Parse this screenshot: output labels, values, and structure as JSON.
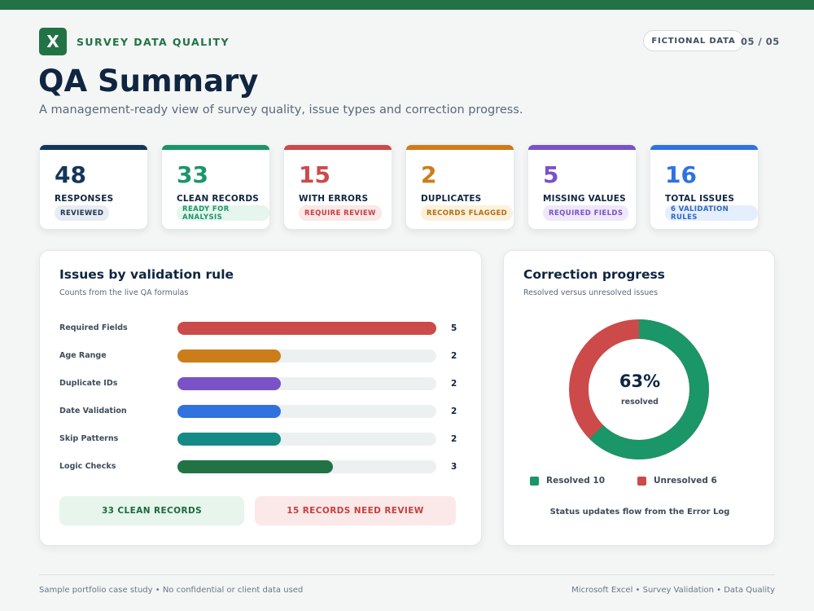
{
  "header": {
    "logo_letter": "X",
    "brand": "SURVEY DATA QUALITY",
    "badge": "FICTIONAL DATA",
    "page": "05 / 05",
    "title": "QA Summary",
    "subtitle": "A management-ready view of survey quality, issue types and correction progress."
  },
  "colors": {
    "brand_green": "#217346",
    "navy": "#13375a",
    "green": "#1a9668",
    "red": "#cc4a4a",
    "amber": "#cc7d1a",
    "purple": "#7a52c7",
    "blue": "#2f72e0",
    "teal": "#168a86"
  },
  "kpis": [
    {
      "value": "48",
      "label": "RESPONSES",
      "tag": "REVIEWED",
      "color": "#13375a",
      "tag_bg": "#e7edf2",
      "tag_color": "#1f3652"
    },
    {
      "value": "33",
      "label": "CLEAN RECORDS",
      "tag": "READY FOR ANALYSIS",
      "color": "#1a9668",
      "tag_bg": "#e6f5ee",
      "tag_color": "#1a9668"
    },
    {
      "value": "15",
      "label": "WITH ERRORS",
      "tag": "REQUIRE REVIEW",
      "color": "#cc4a4a",
      "tag_bg": "#fbe8e8",
      "tag_color": "#c44141"
    },
    {
      "value": "2",
      "label": "DUPLICATES",
      "tag": "RECORDS FLAGGED",
      "color": "#cc7d1a",
      "tag_bg": "#fcf1dc",
      "tag_color": "#b56c10"
    },
    {
      "value": "5",
      "label": "MISSING VALUES",
      "tag": "REQUIRED FIELDS",
      "color": "#7a52c7",
      "tag_bg": "#efe8fa",
      "tag_color": "#7a52c7"
    },
    {
      "value": "16",
      "label": "TOTAL ISSUES",
      "tag": "6 VALIDATION RULES",
      "color": "#2f72e0",
      "tag_bg": "#e5eefc",
      "tag_color": "#2f66c8"
    }
  ],
  "issues_panel": {
    "title": "Issues by validation rule",
    "subtitle": "Counts from the live QA formulas",
    "max": 5,
    "rules": [
      {
        "name": "Required Fields",
        "value": 5,
        "color": "#cc4a4a"
      },
      {
        "name": "Age Range",
        "value": 2,
        "color": "#cc7d1a"
      },
      {
        "name": "Duplicate IDs",
        "value": 2,
        "color": "#7a52c7"
      },
      {
        "name": "Date Validation",
        "value": 2,
        "color": "#2f72e0"
      },
      {
        "name": "Skip Patterns",
        "value": 2,
        "color": "#168a86"
      },
      {
        "name": "Logic Checks",
        "value": 3,
        "color": "#217346"
      }
    ],
    "clean_btn": "33 CLEAN RECORDS",
    "review_btn": "15 RECORDS NEED REVIEW"
  },
  "progress_panel": {
    "title": "Correction progress",
    "subtitle": "Resolved versus unresolved issues",
    "percent": "63%",
    "percent_label": "resolved",
    "resolved": 10,
    "unresolved": 6,
    "resolved_label": "Resolved 10",
    "unresolved_label": "Unresolved 6",
    "note": "Status updates flow from the Error Log"
  },
  "footer": {
    "left": "Sample portfolio case study • No confidential or client data used",
    "right": "Microsoft Excel • Survey Validation • Data Quality"
  }
}
